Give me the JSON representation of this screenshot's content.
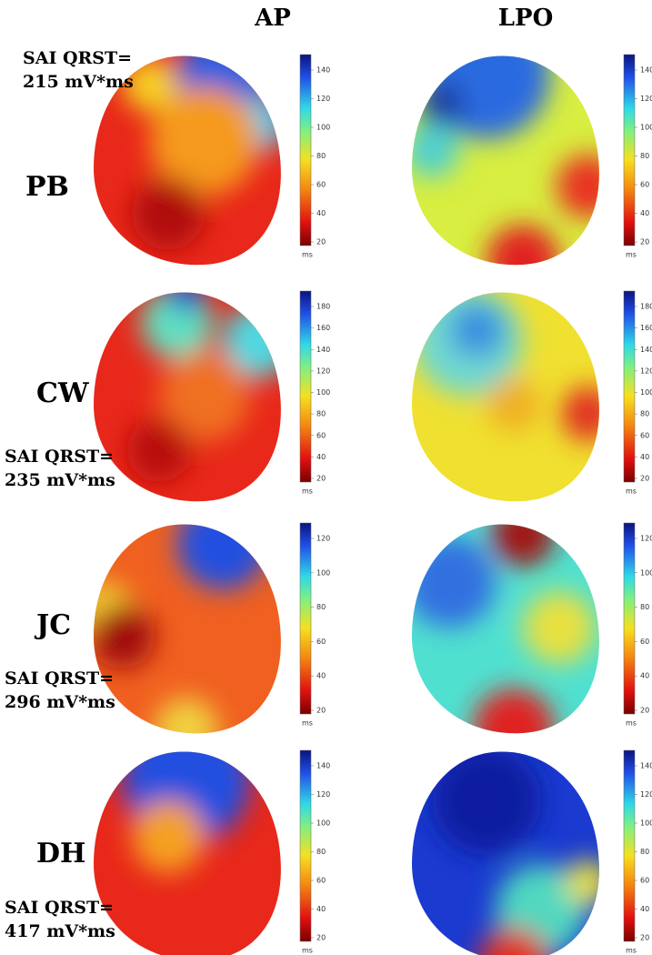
{
  "columns": [
    "AP",
    "LPO"
  ],
  "colorbar_unit": "ms",
  "rows": [
    {
      "label": "PB",
      "sai_label": "SAI QRST=",
      "sai_value": "215 mV*ms",
      "colorbar_ticks": [
        20,
        40,
        60,
        80,
        100,
        120,
        140
      ]
    },
    {
      "label": "CW",
      "sai_label": "SAI QRST=",
      "sai_value": "235 mV*ms",
      "colorbar_ticks": [
        20,
        40,
        60,
        80,
        100,
        120,
        140,
        160,
        180
      ]
    },
    {
      "label": "JC",
      "sai_label": "SAI QRST=",
      "sai_value": "296 mV*ms",
      "colorbar_ticks": [
        20,
        40,
        60,
        80,
        100,
        120
      ]
    },
    {
      "label": "DH",
      "sai_label": "SAI QRST=",
      "sai_value": "417 mV*ms",
      "colorbar_ticks": [
        20,
        40,
        60,
        80,
        100,
        120,
        140
      ]
    }
  ]
}
